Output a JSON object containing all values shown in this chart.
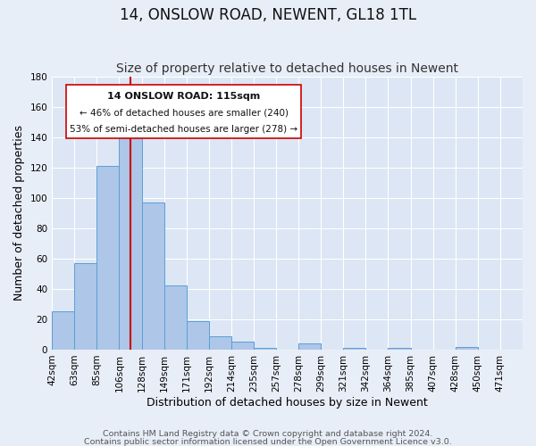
{
  "title": "14, ONSLOW ROAD, NEWENT, GL18 1TL",
  "subtitle": "Size of property relative to detached houses in Newent",
  "xlabel": "Distribution of detached houses by size in Newent",
  "ylabel": "Number of detached properties",
  "footer_line1": "Contains HM Land Registry data © Crown copyright and database right 2024.",
  "footer_line2": "Contains public sector information licensed under the Open Government Licence v3.0.",
  "bar_labels": [
    "42sqm",
    "63sqm",
    "85sqm",
    "106sqm",
    "128sqm",
    "149sqm",
    "171sqm",
    "192sqm",
    "214sqm",
    "235sqm",
    "257sqm",
    "278sqm",
    "299sqm",
    "321sqm",
    "342sqm",
    "364sqm",
    "385sqm",
    "407sqm",
    "428sqm",
    "450sqm",
    "471sqm"
  ],
  "bar_values": [
    25,
    57,
    121,
    142,
    97,
    42,
    19,
    9,
    5,
    1,
    0,
    4,
    0,
    1,
    0,
    1,
    0,
    0,
    2,
    0,
    0
  ],
  "bar_color": "#aec6e8",
  "bar_edge_color": "#5a9fd4",
  "vline_x": 3.5,
  "vline_color": "#cc0000",
  "annotation_title": "14 ONSLOW ROAD: 115sqm",
  "annotation_line1": "← 46% of detached houses are smaller (240)",
  "annotation_line2": "53% of semi-detached houses are larger (278) →",
  "annotation_box_color": "#ffffff",
  "annotation_box_edge": "#cc0000",
  "ylim": [
    0,
    180
  ],
  "yticks": [
    0,
    20,
    40,
    60,
    80,
    100,
    120,
    140,
    160,
    180
  ],
  "background_color": "#e8eef7",
  "plot_background": "#dce6f5",
  "grid_color": "#ffffff",
  "title_fontsize": 12,
  "subtitle_fontsize": 10,
  "axis_label_fontsize": 9,
  "tick_fontsize": 7.5,
  "footer_fontsize": 6.8
}
